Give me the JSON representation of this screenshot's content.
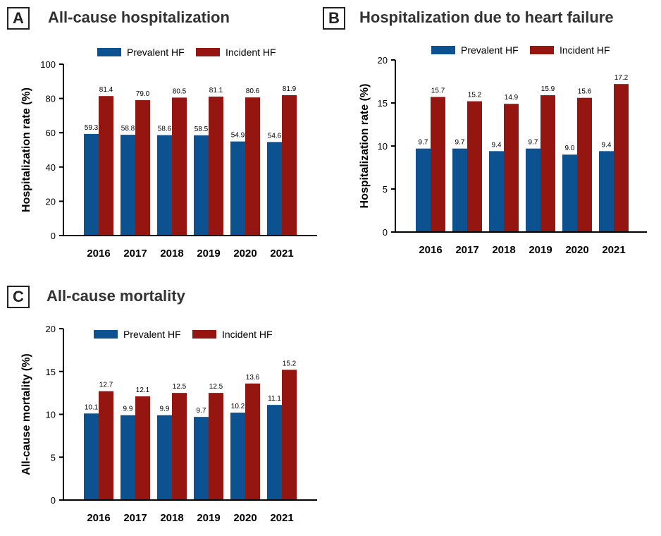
{
  "colors": {
    "prevalent": "#0c5291",
    "incident": "#951510",
    "axis": "#000000",
    "text": "#000000"
  },
  "chart_data": [
    {
      "type": "bar",
      "panel_label": "A",
      "title": "All-cause hospitalization",
      "xlabel": "",
      "ylabel": "Hospitalization rate (%)",
      "ylim": [
        0,
        100
      ],
      "yticks": [
        0,
        20,
        40,
        60,
        80,
        100
      ],
      "ytick_labels": [
        "0",
        "20",
        "40",
        "60",
        "80",
        "100"
      ],
      "categories": [
        "2016",
        "2017",
        "2018",
        "2019",
        "2020",
        "2021"
      ],
      "legend_position": "top-center",
      "grid": false,
      "series": [
        {
          "name": "Prevalent HF",
          "values": [
            59.3,
            58.8,
            58.6,
            58.5,
            54.9,
            54.6
          ],
          "labels": [
            "59.3",
            "58.8",
            "58.6",
            "58.5",
            "54.9",
            "54.6"
          ]
        },
        {
          "name": "Incident HF",
          "values": [
            81.4,
            79.0,
            80.5,
            81.1,
            80.6,
            81.9
          ],
          "labels": [
            "81.4",
            "79.0",
            "80.5",
            "81.1",
            "80.6",
            "81.9"
          ]
        }
      ]
    },
    {
      "type": "bar",
      "panel_label": "B",
      "title": "Hospitalization due to heart failure",
      "xlabel": "",
      "ylabel": "Hospitalization rate (%)",
      "ylim": [
        0,
        20
      ],
      "yticks": [
        0,
        5,
        10,
        15,
        20
      ],
      "ytick_labels": [
        "0",
        "5",
        "10",
        "15",
        "20"
      ],
      "categories": [
        "2016",
        "2017",
        "2018",
        "2019",
        "2020",
        "2021"
      ],
      "legend_position": "top-center",
      "grid": false,
      "series": [
        {
          "name": "Prevalent HF",
          "values": [
            9.7,
            9.7,
            9.4,
            9.7,
            9.0,
            9.4
          ],
          "labels": [
            "9.7",
            "9.7",
            "9.4",
            "9.7",
            "9.0",
            "9.4"
          ]
        },
        {
          "name": "Incident HF",
          "values": [
            15.7,
            15.2,
            14.9,
            15.9,
            15.6,
            17.2
          ],
          "labels": [
            "15.7",
            "15.2",
            "14.9",
            "15.9",
            "15.6",
            "17.2"
          ]
        }
      ]
    },
    {
      "type": "bar",
      "panel_label": "C",
      "title": "All-cause mortality",
      "xlabel": "",
      "ylabel": "All-cause mortality (%)",
      "ylim": [
        0,
        20
      ],
      "yticks": [
        0,
        5,
        10,
        15,
        20
      ],
      "ytick_labels": [
        "0",
        "5",
        "10",
        "15",
        "20"
      ],
      "categories": [
        "2016",
        "2017",
        "2018",
        "2019",
        "2020",
        "2021"
      ],
      "legend_position": "top-center",
      "grid": false,
      "series": [
        {
          "name": "Prevalent HF",
          "values": [
            10.1,
            9.9,
            9.9,
            9.7,
            10.2,
            11.1
          ],
          "labels": [
            "10.1",
            "9.9",
            "9.9",
            "9.7",
            "10.2",
            "11.1"
          ]
        },
        {
          "name": "Incident HF",
          "values": [
            12.7,
            12.1,
            12.5,
            12.5,
            13.6,
            15.2
          ],
          "labels": [
            "12.7",
            "12.1",
            "12.5",
            "12.5",
            "13.6",
            "15.2"
          ]
        }
      ]
    }
  ]
}
